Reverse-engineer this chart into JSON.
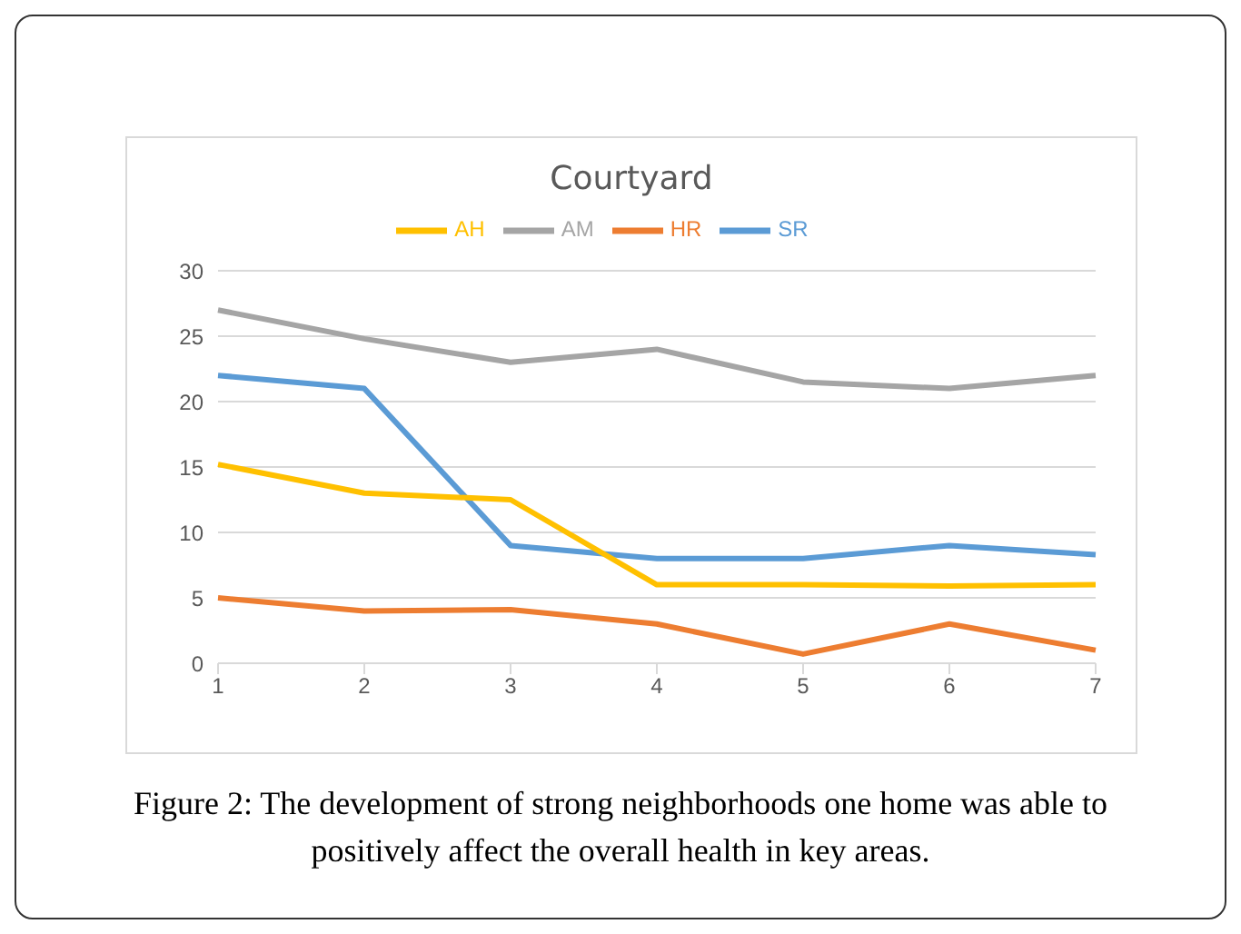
{
  "chart_data": {
    "type": "line",
    "title": "Courtyard",
    "categories": [
      "1",
      "2",
      "3",
      "4",
      "5",
      "6",
      "7"
    ],
    "series": [
      {
        "name": "SR",
        "color": "#5b9bd5",
        "values": [
          22,
          21,
          9,
          8,
          8,
          9,
          8.3
        ]
      },
      {
        "name": "HR",
        "color": "#ed7d31",
        "values": [
          5,
          4,
          4.1,
          3,
          0.7,
          3,
          1
        ]
      },
      {
        "name": "AM",
        "color": "#a5a5a5",
        "values": [
          27,
          24.8,
          23,
          24,
          21.5,
          21,
          22
        ]
      },
      {
        "name": "AH",
        "color": "#ffc000",
        "values": [
          15.2,
          13,
          12.5,
          6,
          6,
          5.9,
          6
        ]
      }
    ],
    "ylim": [
      0,
      30
    ],
    "yticks": [
      0,
      5,
      10,
      15,
      20,
      25,
      30
    ],
    "grid": "y",
    "legend": "top",
    "marker": "none",
    "line_style": "solid",
    "annotations": [
      "Figure 2: The development of strong neighborhoods one home was able to positively affect the overall health in key areas."
    ]
  }
}
